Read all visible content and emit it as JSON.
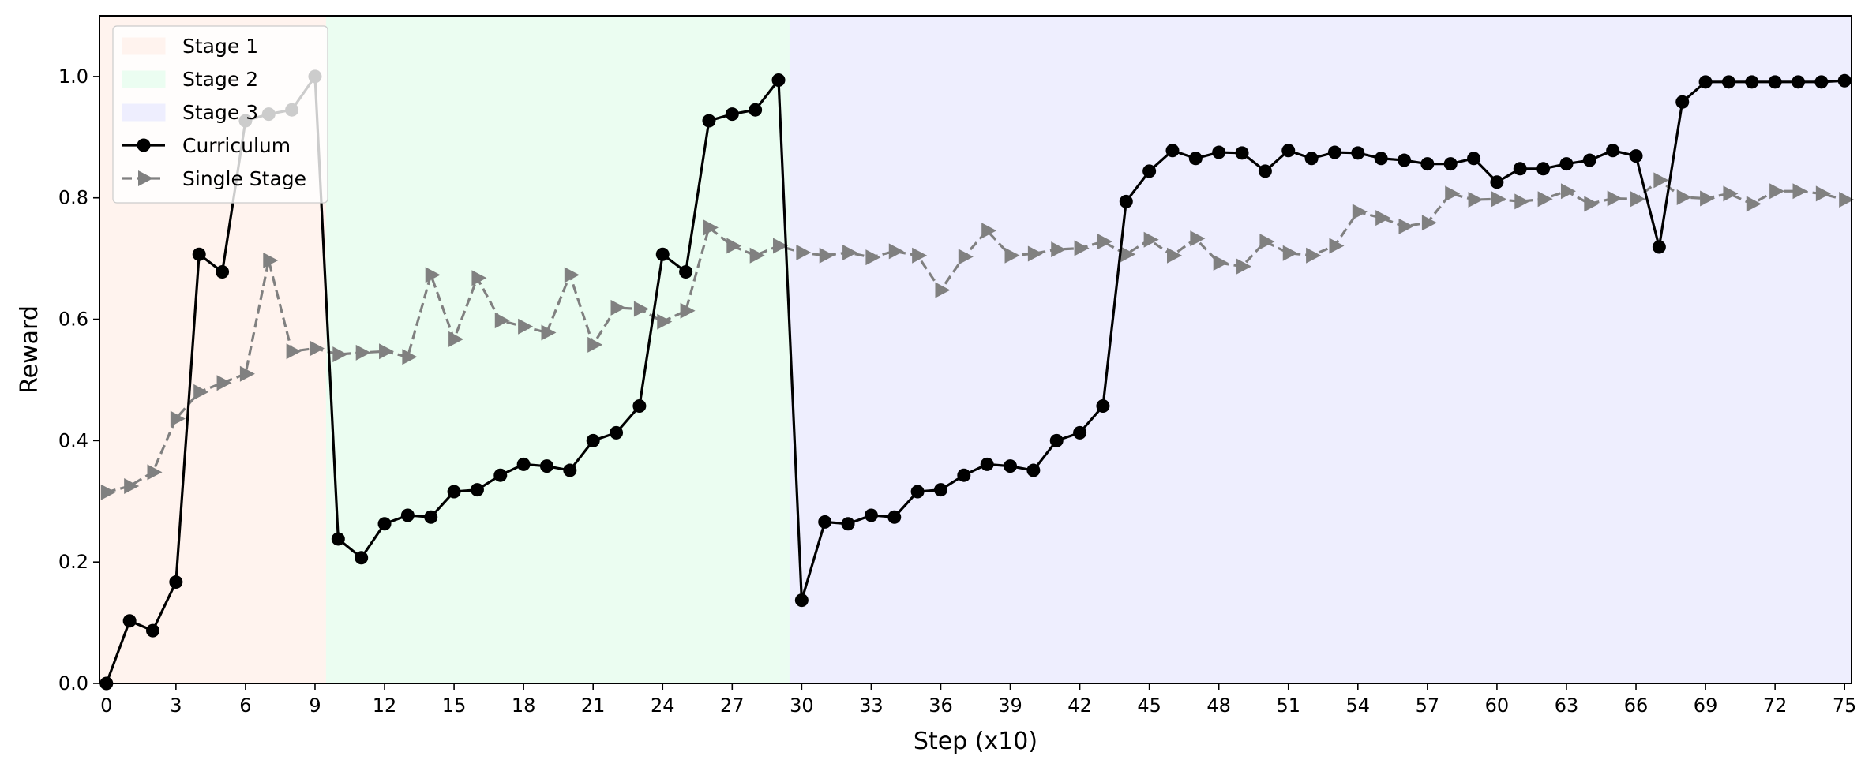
{
  "chart_data": {
    "type": "line",
    "xlabel": "Step (x10)",
    "ylabel": "Reward",
    "xlim": [
      -0.3,
      75.3
    ],
    "ylim": [
      0,
      1.1
    ],
    "xticks": [
      0,
      3,
      6,
      9,
      12,
      15,
      18,
      21,
      24,
      27,
      30,
      33,
      36,
      39,
      42,
      45,
      48,
      51,
      54,
      57,
      60,
      63,
      66,
      69,
      72,
      75
    ],
    "yticks": [
      0.0,
      0.2,
      0.4,
      0.6,
      0.8,
      1.0
    ],
    "ytick_labels": [
      "0.0",
      "0.2",
      "0.4",
      "0.6",
      "0.8",
      "1.0"
    ],
    "grid": false,
    "legend_position": "top-left",
    "regions": [
      {
        "name": "Stage 1",
        "x_start": -0.3,
        "x_end": 9.5,
        "color": "#fff3ee"
      },
      {
        "name": "Stage 2",
        "x_start": 9.5,
        "x_end": 29.5,
        "color": "#ebfdf1"
      },
      {
        "name": "Stage 3",
        "x_start": 29.5,
        "x_end": 75.3,
        "color": "#eeeefe"
      }
    ],
    "series": [
      {
        "name": "Curriculum",
        "color": "#000000",
        "line_style": "solid",
        "marker": "circle",
        "x": [
          0,
          1,
          2,
          3,
          4,
          5,
          6,
          7,
          8,
          9,
          10,
          11,
          12,
          13,
          14,
          15,
          16,
          17,
          18,
          19,
          20,
          21,
          22,
          23,
          24,
          25,
          26,
          27,
          28,
          29,
          30,
          31,
          32,
          33,
          34,
          35,
          36,
          37,
          38,
          39,
          40,
          41,
          42,
          43,
          44,
          45,
          46,
          47,
          48,
          49,
          50,
          51,
          52,
          53,
          54,
          55,
          56,
          57,
          58,
          59,
          60,
          61,
          62,
          63,
          64,
          65,
          66,
          67,
          68,
          69,
          70,
          71,
          72,
          73,
          74,
          75
        ],
        "y": [
          0.0,
          0.103,
          0.087,
          0.167,
          0.707,
          0.678,
          0.927,
          0.938,
          0.945,
          1.0,
          0.238,
          0.207,
          0.263,
          0.277,
          0.274,
          0.316,
          0.319,
          0.343,
          0.361,
          0.358,
          0.351,
          0.4,
          0.413,
          0.457,
          0.707,
          0.678,
          0.927,
          0.938,
          0.945,
          0.994,
          0.137,
          0.266,
          0.263,
          0.277,
          0.274,
          0.316,
          0.319,
          0.343,
          0.361,
          0.358,
          0.351,
          0.4,
          0.413,
          0.457,
          0.794,
          0.844,
          0.878,
          0.865,
          0.875,
          0.874,
          0.844,
          0.878,
          0.865,
          0.875,
          0.874,
          0.865,
          0.862,
          0.856,
          0.856,
          0.865,
          0.826,
          0.848,
          0.848,
          0.856,
          0.862,
          0.878,
          0.869,
          0.719,
          0.958,
          0.991,
          0.991,
          0.991,
          0.991,
          0.991,
          0.991,
          0.993
        ]
      },
      {
        "name": "Single Stage",
        "color": "#808080",
        "line_style": "dashed",
        "marker": "triangle-right",
        "x": [
          0,
          1,
          2,
          3,
          4,
          5,
          6,
          7,
          8,
          9,
          10,
          11,
          12,
          13,
          14,
          15,
          16,
          17,
          18,
          19,
          20,
          21,
          22,
          23,
          24,
          25,
          26,
          27,
          28,
          29,
          30,
          31,
          32,
          33,
          34,
          35,
          36,
          37,
          38,
          39,
          40,
          41,
          42,
          43,
          44,
          45,
          46,
          47,
          48,
          49,
          50,
          51,
          52,
          53,
          54,
          55,
          56,
          57,
          58,
          59,
          60,
          61,
          62,
          63,
          64,
          65,
          66,
          67,
          68,
          69,
          70,
          71,
          72,
          73,
          74,
          75
        ],
        "y": [
          0.315,
          0.325,
          0.348,
          0.436,
          0.48,
          0.495,
          0.51,
          0.697,
          0.547,
          0.552,
          0.542,
          0.545,
          0.547,
          0.538,
          0.673,
          0.567,
          0.668,
          0.598,
          0.588,
          0.578,
          0.673,
          0.558,
          0.619,
          0.617,
          0.596,
          0.614,
          0.751,
          0.721,
          0.705,
          0.721,
          0.71,
          0.705,
          0.71,
          0.702,
          0.712,
          0.705,
          0.648,
          0.703,
          0.746,
          0.705,
          0.708,
          0.715,
          0.717,
          0.728,
          0.707,
          0.731,
          0.705,
          0.733,
          0.693,
          0.687,
          0.728,
          0.709,
          0.705,
          0.721,
          0.777,
          0.767,
          0.753,
          0.759,
          0.807,
          0.797,
          0.798,
          0.794,
          0.798,
          0.811,
          0.79,
          0.799,
          0.798,
          0.829,
          0.801,
          0.799,
          0.807,
          0.79,
          0.811,
          0.811,
          0.807,
          0.797
        ]
      }
    ]
  }
}
